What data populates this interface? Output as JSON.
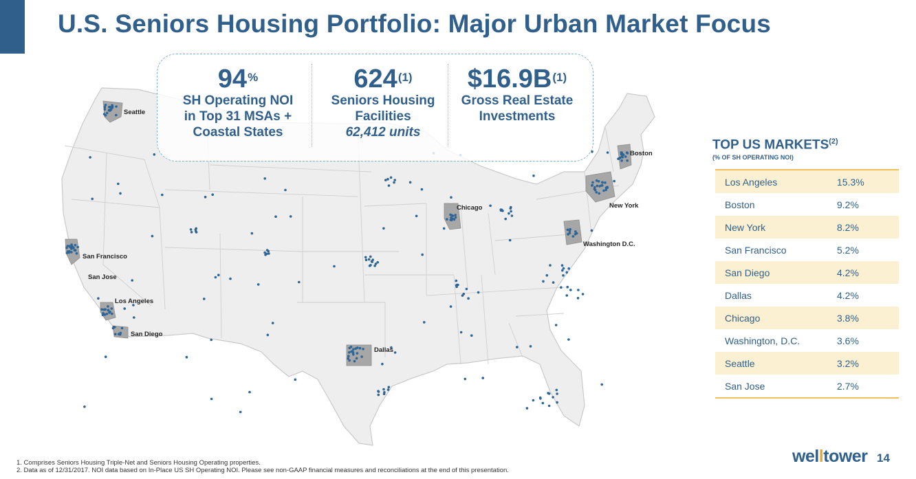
{
  "title": "U.S. Seniors Housing Portfolio: Major Urban Market Focus",
  "stats": [
    {
      "value": "94",
      "sup": "%",
      "lines": [
        "SH Operating NOI",
        "in Top 31 MSAs +",
        "Coastal States"
      ]
    },
    {
      "value": "624",
      "sup": "(1)",
      "lines": [
        "Seniors Housing",
        "Facilities"
      ],
      "italic": "62,412 units"
    },
    {
      "value": "$16.9B",
      "sup": "(1)",
      "lines": [
        "Gross Real Estate",
        "Investments"
      ]
    }
  ],
  "map_labels": {
    "seattle": "Seattle",
    "san_francisco": "San Francisco",
    "san_jose": "San Jose",
    "los_angeles": "Los Angeles",
    "san_diego": "San Diego",
    "dallas": "Dallas",
    "chicago": "Chicago",
    "new_york": "New York",
    "boston": "Boston",
    "washington": "Washington D.C."
  },
  "markets": {
    "title": "TOP US MARKETS",
    "title_sup": "(2)",
    "subtitle": "(% OF SH OPERATING NOI)",
    "rows": [
      {
        "name": "Los Angeles",
        "value": "15.3%"
      },
      {
        "name": "Boston",
        "value": "9.2%"
      },
      {
        "name": "New York",
        "value": "8.2%"
      },
      {
        "name": "San Francisco",
        "value": "5.2%"
      },
      {
        "name": "San Diego",
        "value": "4.2%"
      },
      {
        "name": "Dallas",
        "value": "4.2%"
      },
      {
        "name": "Chicago",
        "value": "3.8%"
      },
      {
        "name": "Washington, D.C.",
        "value": "3.6%"
      },
      {
        "name": "Seattle",
        "value": "3.2%"
      },
      {
        "name": "San Jose",
        "value": "2.7%"
      }
    ]
  },
  "footnotes": [
    "1. Comprises Seniors Housing Triple-Net and Seniors Housing Operating properties.",
    "2. Data as of 12/31/2017. NOI data based on In-Place US SH Operating NOI. Please see non-GAAP financial measures and reconciliations at the end of this presentation."
  ],
  "logo": {
    "part1": "wel",
    "part2": "l",
    "part3": "tower"
  },
  "page_number": "14",
  "colors": {
    "brand": "#2f5f8a",
    "accent": "#e5a93b",
    "dot": "#2d6597",
    "map_fill": "#eeeeee",
    "metro": "#a7a7a7"
  }
}
